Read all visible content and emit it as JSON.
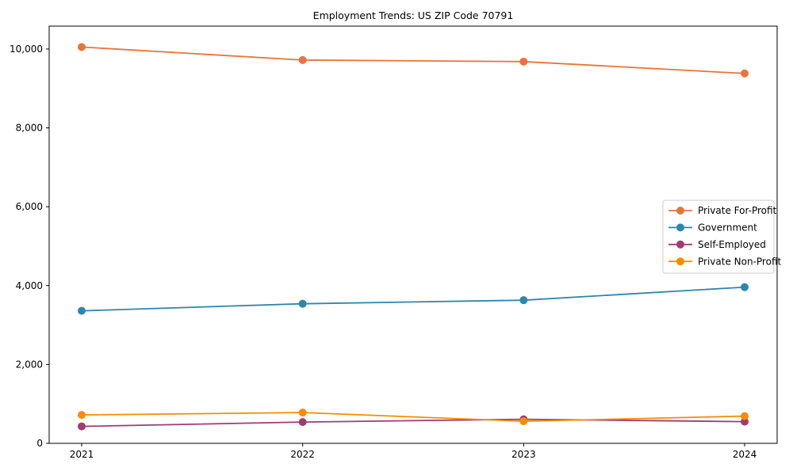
{
  "chart_data": {
    "type": "line",
    "title": "Employment Trends: US ZIP Code 70791",
    "xlabel": "",
    "ylabel": "",
    "x": [
      2021,
      2022,
      2023,
      2024
    ],
    "x_tick_labels": [
      "2021",
      "2022",
      "2023",
      "2024"
    ],
    "series": [
      {
        "name": "Private For-Profit",
        "color": "#e8743b",
        "values": [
          10050,
          9720,
          9680,
          9380
        ]
      },
      {
        "name": "Government",
        "color": "#2e86ab",
        "values": [
          3360,
          3540,
          3630,
          3960
        ]
      },
      {
        "name": "Self-Employed",
        "color": "#a23b72",
        "values": [
          430,
          540,
          610,
          550
        ]
      },
      {
        "name": "Private Non-Profit",
        "color": "#f18f01",
        "values": [
          720,
          780,
          560,
          690
        ]
      }
    ],
    "ylim": [
      0,
      10580
    ],
    "yticks": [
      0,
      2000,
      4000,
      6000,
      8000,
      10000
    ],
    "ytick_labels": [
      "0",
      "2,000",
      "4,000",
      "6,000",
      "8,000",
      "10,000"
    ],
    "grid": false,
    "legend_position": "center-right",
    "marker": "circle"
  },
  "colors": {
    "background": "#ffffff",
    "spine": "#000000",
    "tick": "#000000",
    "text": "#000000",
    "legend_border": "#cccccc",
    "legend_background": "#ffffff"
  }
}
